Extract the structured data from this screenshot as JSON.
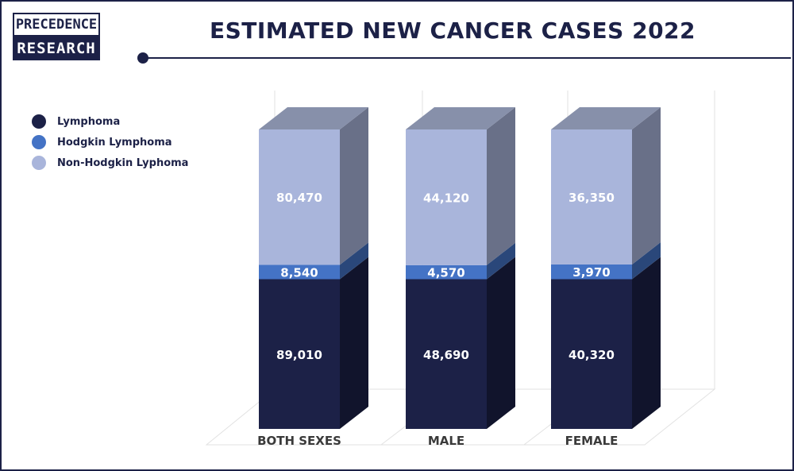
{
  "header": {
    "logo_line1": "PRECEDENCE",
    "logo_line2": "RESEARCH",
    "title": "ESTIMATED NEW CANCER CASES 2022"
  },
  "colors": {
    "navy": "#1c2147",
    "lymphoma": "#1c2147",
    "hodgkin": "#4473c5",
    "non_hodgkin": "#a9b5db"
  },
  "legend": [
    {
      "label": "Lymphoma",
      "color": "#1c2147"
    },
    {
      "label": "Hodgkin Lymphoma",
      "color": "#4473c5"
    },
    {
      "label": "Non-Hodgkin Lyphoma",
      "color": "#a9b5db"
    }
  ],
  "chart_data": {
    "type": "bar",
    "stacked": true,
    "three_d": true,
    "title": "ESTIMATED NEW CANCER CASES 2022",
    "categories": [
      "BOTH SEXES",
      "MALE",
      "FEMALE"
    ],
    "series": [
      {
        "name": "Lymphoma",
        "values": [
          89010,
          48690,
          40320
        ],
        "labels": [
          "89,010",
          "48,690",
          "40,320"
        ]
      },
      {
        "name": "Hodgkin Lymphoma",
        "values": [
          8540,
          4570,
          3970
        ],
        "labels": [
          "8,540",
          "4,570",
          "3,970"
        ]
      },
      {
        "name": "Non-Hodgkin Lyphoma",
        "values": [
          80470,
          44120,
          36350
        ],
        "labels": [
          "80,470",
          "44,120",
          "36,350"
        ]
      }
    ],
    "normalized": true,
    "grid": true,
    "legend_position": "top-left"
  }
}
